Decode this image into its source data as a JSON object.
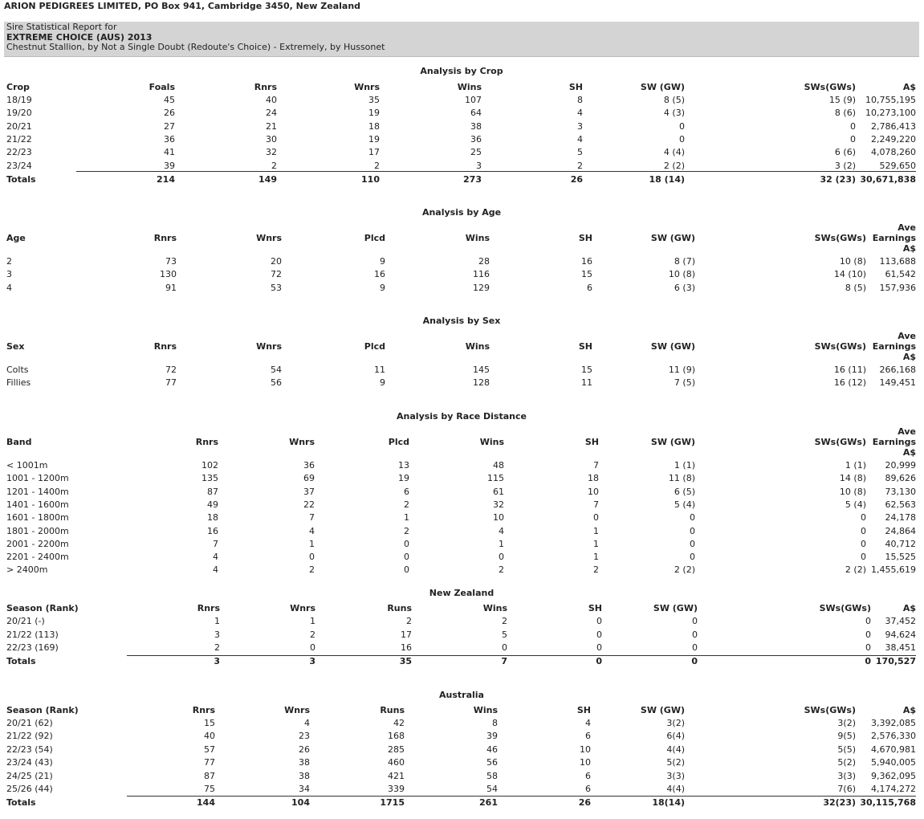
{
  "header": {
    "company": "ARION PEDIGREES LIMITED, PO Box 941, Cambridge 3450, New Zealand",
    "report_label": "Sire Statistical Report for",
    "horse": "EXTREME CHOICE (AUS) 2013",
    "description": "Chestnut Stallion, by Not a Single Doubt (Redoute's Choice) - Extremely, by Hussonet"
  },
  "tables": [
    {
      "title": "Analysis by Crop",
      "headers": [
        "Crop",
        "Foals",
        "Rnrs",
        "Wnrs",
        "Wins",
        "SH",
        "SW (GW)",
        "SWs(GWs)",
        "A$"
      ],
      "rows": [
        [
          "18/19",
          45,
          40,
          35,
          107,
          8,
          "8 (5)",
          "15 (9)",
          "10,755,195"
        ],
        [
          "19/20",
          26,
          24,
          19,
          64,
          4,
          "4 (3)",
          "8 (6)",
          "10,273,100"
        ],
        [
          "20/21",
          27,
          21,
          18,
          38,
          3,
          0,
          0,
          "2,786,413"
        ],
        [
          "21/22",
          36,
          30,
          19,
          36,
          4,
          0,
          0,
          "2,249,220"
        ],
        [
          "22/23",
          41,
          32,
          17,
          25,
          5,
          "4 (4)",
          "6 (6)",
          "4,078,260"
        ],
        [
          "23/24",
          39,
          2,
          2,
          3,
          2,
          "2 (2)",
          "3 (2)",
          "529,650"
        ]
      ],
      "totals": [
        "Totals",
        214,
        149,
        110,
        273,
        26,
        "18 (14)",
        "32 (23)",
        "30,671,838"
      ]
    },
    {
      "title": "Analysis by Age",
      "headers": [
        "Age",
        "Rnrs",
        "Wnrs",
        "Plcd",
        "Wins",
        "SH",
        "SW (GW)",
        "SWs(GWs)",
        [
          "Ave",
          "Earnings",
          "A$"
        ]
      ],
      "rows": [
        [
          2,
          73,
          20,
          9,
          28,
          16,
          "8 (7)",
          "10 (8)",
          "113,688"
        ],
        [
          3,
          130,
          72,
          16,
          116,
          15,
          "10 (8)",
          "14 (10)",
          "61,542"
        ],
        [
          4,
          91,
          53,
          9,
          129,
          6,
          "6 (3)",
          "8 (5)",
          "157,936"
        ]
      ]
    },
    {
      "title": "Analysis by Sex",
      "headers": [
        "Sex",
        "Rnrs",
        "Wnrs",
        "Plcd",
        "Wins",
        "SH",
        "SW (GW)",
        "SWs(GWs)",
        [
          "Ave",
          "Earnings",
          "A$"
        ]
      ],
      "rows": [
        [
          "Colts",
          72,
          54,
          11,
          145,
          15,
          "11 (9)",
          "16 (11)",
          "266,168"
        ],
        [
          "Fillies",
          77,
          56,
          9,
          128,
          11,
          "7 (5)",
          "16 (12)",
          "149,451"
        ]
      ]
    },
    {
      "title": "Analysis by Race Distance",
      "headers": [
        "Band",
        "Rnrs",
        "Wnrs",
        "Plcd",
        "Wins",
        "SH",
        "SW (GW)",
        "SWs(GWs)",
        [
          "Ave",
          "Earnings",
          "A$"
        ]
      ],
      "rows": [
        [
          "< 1001m",
          102,
          36,
          13,
          48,
          7,
          "1 (1)",
          "1 (1)",
          "20,999"
        ],
        [
          "1001 - 1200m",
          135,
          69,
          19,
          115,
          18,
          "11 (8)",
          "14 (8)",
          "89,626"
        ],
        [
          "1201 - 1400m",
          87,
          37,
          6,
          61,
          10,
          "6 (5)",
          "10 (8)",
          "73,130"
        ],
        [
          "1401 - 1600m",
          49,
          22,
          2,
          32,
          7,
          "5 (4)",
          "5 (4)",
          "62,563"
        ],
        [
          "1601 - 1800m",
          18,
          7,
          1,
          10,
          0,
          0,
          0,
          "24,178"
        ],
        [
          "1801 - 2000m",
          16,
          4,
          2,
          4,
          1,
          0,
          0,
          "24,864"
        ],
        [
          "2001 - 2200m",
          7,
          1,
          0,
          1,
          1,
          0,
          0,
          "40,712"
        ],
        [
          "2201 - 2400m",
          4,
          0,
          0,
          0,
          1,
          0,
          0,
          "15,525"
        ],
        [
          "> 2400m",
          4,
          2,
          0,
          2,
          2,
          "2 (2)",
          "2 (2)",
          "1,455,619"
        ]
      ]
    },
    {
      "title": "New Zealand",
      "headers": [
        "Season (Rank)",
        "Rnrs",
        "Wnrs",
        "Runs",
        "Wins",
        "SH",
        "SW (GW)",
        "SWs(GWs)",
        "A$"
      ],
      "rows": [
        [
          "20/21 (-)",
          1,
          1,
          2,
          2,
          0,
          0,
          0,
          "37,452"
        ],
        [
          "21/22 (113)",
          3,
          2,
          17,
          5,
          0,
          0,
          0,
          "94,624"
        ],
        [
          "22/23 (169)",
          2,
          0,
          16,
          0,
          0,
          0,
          0,
          "38,451"
        ]
      ],
      "totals": [
        "Totals",
        3,
        3,
        35,
        7,
        0,
        0,
        0,
        "170,527"
      ]
    },
    {
      "title": "Australia",
      "headers": [
        "Season (Rank)",
        "Rnrs",
        "Wnrs",
        "Runs",
        "Wins",
        "SH",
        "SW (GW)",
        "SWs(GWs)",
        "A$"
      ],
      "rows": [
        [
          "20/21 (62)",
          15,
          4,
          42,
          8,
          4,
          "3(2)",
          "3(2)",
          "3,392,085"
        ],
        [
          "21/22 (92)",
          40,
          23,
          168,
          39,
          6,
          "6(4)",
          "9(5)",
          "2,576,330"
        ],
        [
          "22/23 (54)",
          57,
          26,
          285,
          46,
          10,
          "4(4)",
          "5(5)",
          "4,670,981"
        ],
        [
          "23/24 (43)",
          77,
          38,
          460,
          56,
          10,
          "5(2)",
          "5(2)",
          "5,940,005"
        ],
        [
          "24/25 (21)",
          87,
          38,
          421,
          58,
          6,
          "3(3)",
          "3(3)",
          "9,362,095"
        ],
        [
          "25/26 (44)",
          75,
          34,
          339,
          54,
          6,
          "4(4)",
          "7(6)",
          "4,174,272"
        ]
      ],
      "totals": [
        "Totals",
        144,
        104,
        1715,
        261,
        26,
        "18(14)",
        "32(23)",
        "30,115,768"
      ]
    }
  ]
}
